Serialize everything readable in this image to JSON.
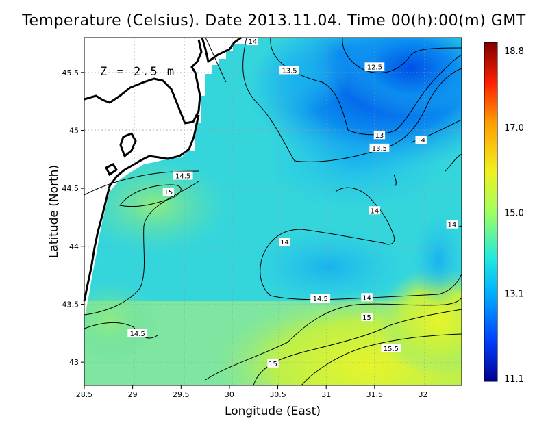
{
  "title": "Temperature (Celsius). Date 2013.11.04. Time 00(h):00(m) GMT",
  "depth_label": "Z = 2.5 m",
  "x_axis": {
    "label": "Longitude (East)",
    "range": [
      28.5,
      32.4
    ],
    "ticks": [
      "28.5",
      "29",
      "29.5",
      "30",
      "30.5",
      "31",
      "31.5",
      "32"
    ]
  },
  "y_axis": {
    "label": "Latitude (North)",
    "range": [
      42.8,
      45.8
    ],
    "ticks": [
      "43",
      "43.5",
      "44",
      "44.5",
      "45",
      "45.5"
    ]
  },
  "colorbar": {
    "ticks": [
      "18.8",
      "17.0",
      "15.0",
      "13.1",
      "11.1"
    ],
    "min": 11.1,
    "max": 18.8
  },
  "contour_labels": [
    {
      "text": "14",
      "lon": 30.24,
      "lat": 45.77
    },
    {
      "text": "13.5",
      "lon": 30.62,
      "lat": 45.52
    },
    {
      "text": "12.5",
      "lon": 31.5,
      "lat": 45.55
    },
    {
      "text": "13",
      "lon": 31.55,
      "lat": 44.96
    },
    {
      "text": "13.5",
      "lon": 31.55,
      "lat": 44.85
    },
    {
      "text": "14",
      "lon": 31.98,
      "lat": 44.92
    },
    {
      "text": "14.5",
      "lon": 29.52,
      "lat": 44.61
    },
    {
      "text": "15",
      "lon": 29.37,
      "lat": 44.47
    },
    {
      "text": "14",
      "lon": 31.5,
      "lat": 44.31
    },
    {
      "text": "14",
      "lon": 32.3,
      "lat": 44.19
    },
    {
      "text": "14",
      "lon": 30.57,
      "lat": 44.04
    },
    {
      "text": "14.5",
      "lon": 30.94,
      "lat": 43.55
    },
    {
      "text": "14",
      "lon": 31.42,
      "lat": 43.56
    },
    {
      "text": "15",
      "lon": 31.42,
      "lat": 43.39
    },
    {
      "text": "14.5",
      "lon": 29.05,
      "lat": 43.25
    },
    {
      "text": "15.5",
      "lon": 31.67,
      "lat": 43.12
    },
    {
      "text": "15",
      "lon": 30.45,
      "lat": 42.99
    }
  ],
  "colors": {
    "land": "#ffffff",
    "coastline": "#000000",
    "contour": "#000000",
    "gridline": "#9a9a9a"
  }
}
